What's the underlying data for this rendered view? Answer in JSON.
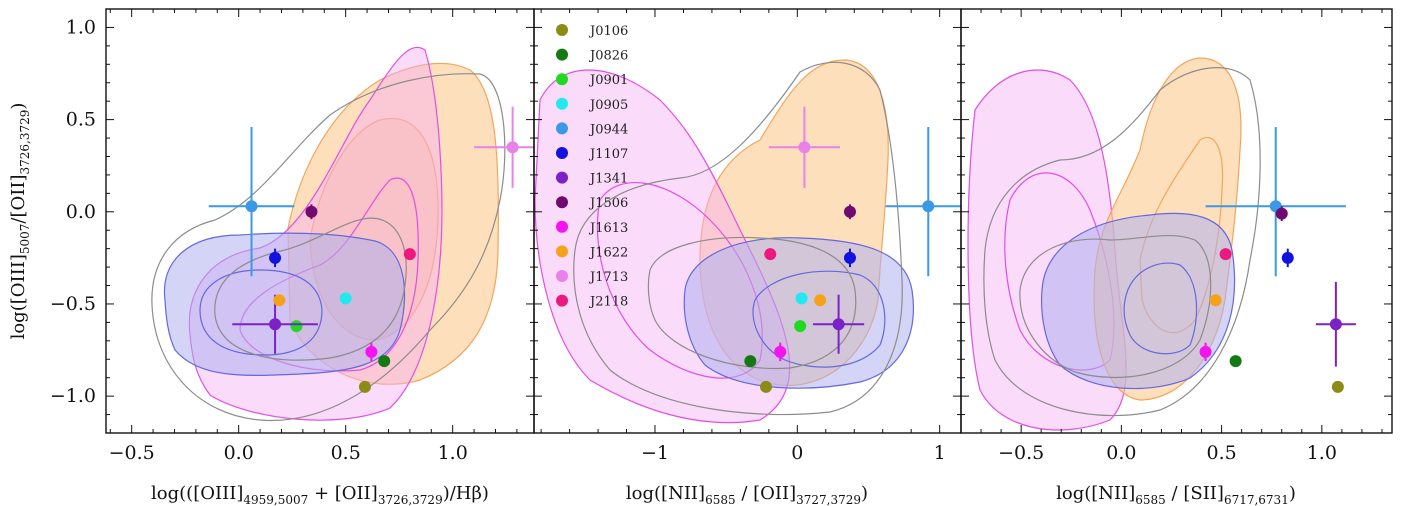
{
  "chart_data": [
    {
      "type": "scatter",
      "panel": "left",
      "xlim": [
        -0.62,
        1.38
      ],
      "ylim": [
        -1.2,
        1.1
      ],
      "xticks": [
        -0.5,
        0.0,
        0.5,
        1.0
      ],
      "xtick_labels": [
        "−0.5",
        "0.0",
        "0.5",
        "1.0"
      ],
      "yticks": [
        -1.0,
        -0.5,
        0.0,
        0.5,
        1.0
      ],
      "ytick_labels": [
        "−1.0",
        "−0.5",
        "0.0",
        "0.5",
        "1.0"
      ],
      "xlabel": {
        "pre": "log(([OIII]",
        "s1": "4959,5007",
        "mid": " + [OII]",
        "s2": "3726,3729",
        "post": ")/Hβ)"
      },
      "ylabel": {
        "pre": "log([OIII]",
        "s1": "5007",
        "mid": "/[OII]",
        "s2": "3726,3729",
        "post": ")"
      },
      "grid": false,
      "points": [
        {
          "name": "J0106",
          "x": 0.59,
          "y": -0.95
        },
        {
          "name": "J0826",
          "x": 0.68,
          "y": -0.81
        },
        {
          "name": "J0901",
          "x": 0.27,
          "y": -0.62
        },
        {
          "name": "J0905",
          "x": 0.5,
          "y": -0.47
        },
        {
          "name": "J0944",
          "x": 0.06,
          "y": 0.03,
          "xerr": 0.2,
          "yerr": [
            0.38,
            0.43
          ]
        },
        {
          "name": "J1107",
          "x": 0.17,
          "y": -0.25,
          "yerr": 0.05
        },
        {
          "name": "J1341",
          "x": 0.17,
          "y": -0.61,
          "xerr": 0.2,
          "yerr": 0.16
        },
        {
          "name": "J1506",
          "x": 0.34,
          "y": 0.0,
          "yerr": 0.04
        },
        {
          "name": "J1613",
          "x": 0.62,
          "y": -0.76,
          "yerr": 0.05
        },
        {
          "name": "J1622",
          "x": 0.19,
          "y": -0.48
        },
        {
          "name": "J1713",
          "x": 1.28,
          "y": 0.35,
          "xerr": 0.18,
          "yerr": 0.22
        },
        {
          "name": "J2118",
          "x": 0.8,
          "y": -0.23,
          "yerr": 0.03
        }
      ]
    },
    {
      "type": "scatter",
      "panel": "middle",
      "xlim": [
        -1.85,
        1.15
      ],
      "ylim": [
        -1.2,
        1.1
      ],
      "xticks": [
        -1,
        0,
        1
      ],
      "xtick_labels": [
        "−1",
        "0",
        "1"
      ],
      "xlabel": {
        "pre": "log([NII]",
        "s1": "6585",
        "mid": " / [OII]",
        "s2": "3727,3729",
        "post": ")"
      },
      "grid": false,
      "points": [
        {
          "name": "J0106",
          "x": -0.22,
          "y": -0.95
        },
        {
          "name": "J0826",
          "x": -0.33,
          "y": -0.81
        },
        {
          "name": "J0901",
          "x": 0.02,
          "y": -0.62
        },
        {
          "name": "J0905",
          "x": 0.03,
          "y": -0.47
        },
        {
          "name": "J0944",
          "x": 0.92,
          "y": 0.03,
          "xerr": 0.3,
          "yerr": [
            0.38,
            0.43
          ]
        },
        {
          "name": "J1107",
          "x": 0.37,
          "y": -0.25,
          "yerr": 0.05
        },
        {
          "name": "J1341",
          "x": 0.29,
          "y": -0.61,
          "xerr": 0.18,
          "yerr": 0.16
        },
        {
          "name": "J1506",
          "x": 0.37,
          "y": 0.0,
          "yerr": 0.04
        },
        {
          "name": "J1613",
          "x": -0.12,
          "y": -0.76,
          "yerr": 0.05
        },
        {
          "name": "J1622",
          "x": 0.16,
          "y": -0.48
        },
        {
          "name": "J1713",
          "x": 0.05,
          "y": 0.35,
          "xerr": 0.25,
          "yerr": 0.22
        },
        {
          "name": "J2118",
          "x": -0.19,
          "y": -0.23,
          "yerr": 0.03
        }
      ]
    },
    {
      "type": "scatter",
      "panel": "right",
      "xlim": [
        -0.8,
        1.35
      ],
      "ylim": [
        -1.2,
        1.1
      ],
      "xticks": [
        -0.5,
        0.0,
        0.5,
        1.0
      ],
      "xtick_labels": [
        "−0.5",
        "0.0",
        "0.5",
        "1.0"
      ],
      "xlabel": {
        "pre": "log([NII]",
        "s1": "6585",
        "mid": " / [SII]",
        "s2": "6717,6731",
        "post": ")"
      },
      "grid": false,
      "points": [
        {
          "name": "J0106",
          "x": 1.08,
          "y": -0.95
        },
        {
          "name": "J0826",
          "x": 0.57,
          "y": -0.81
        },
        {
          "name": "J0944",
          "x": 0.77,
          "y": 0.03,
          "xerr": 0.35,
          "yerr": [
            0.38,
            0.43
          ]
        },
        {
          "name": "J1107",
          "x": 0.83,
          "y": -0.25,
          "yerr": 0.05
        },
        {
          "name": "J1341",
          "x": 1.07,
          "y": -0.61,
          "xerr": 0.1,
          "yerr": 0.23
        },
        {
          "name": "J1506",
          "x": 0.8,
          "y": -0.01,
          "yerr": 0.04
        },
        {
          "name": "J1613",
          "x": 0.42,
          "y": -0.76,
          "yerr": 0.05
        },
        {
          "name": "J1622",
          "x": 0.47,
          "y": -0.48
        },
        {
          "name": "J2118",
          "x": 0.52,
          "y": -0.23,
          "yerr": 0.03
        }
      ]
    }
  ],
  "legend": {
    "placement": "top-left of middle panel",
    "entries": [
      {
        "name": "J0106",
        "color": "#8b8b16"
      },
      {
        "name": "J0826",
        "color": "#137a13"
      },
      {
        "name": "J0901",
        "color": "#22d922"
      },
      {
        "name": "J0905",
        "color": "#22e9f0"
      },
      {
        "name": "J0944",
        "color": "#3a99e6"
      },
      {
        "name": "J1107",
        "color": "#1111e0"
      },
      {
        "name": "J1341",
        "color": "#7a22c8"
      },
      {
        "name": "J1506",
        "color": "#700a70"
      },
      {
        "name": "J1613",
        "color": "#f514f0"
      },
      {
        "name": "J1622",
        "color": "#f5a21b"
      },
      {
        "name": "J1713",
        "color": "#e882e8"
      },
      {
        "name": "J2118",
        "color": "#ec1a7e"
      }
    ]
  },
  "density_regions": [
    {
      "kind": "orange",
      "fill": "#fbc98f",
      "line": "#f4a55a"
    },
    {
      "kind": "magenta",
      "fill": "#f7b0f3",
      "line": "#e34ee3"
    },
    {
      "kind": "blue",
      "fill": "#aeb0ef",
      "line": "#6568de"
    },
    {
      "kind": "gray",
      "line": "#8c8c8c"
    }
  ]
}
